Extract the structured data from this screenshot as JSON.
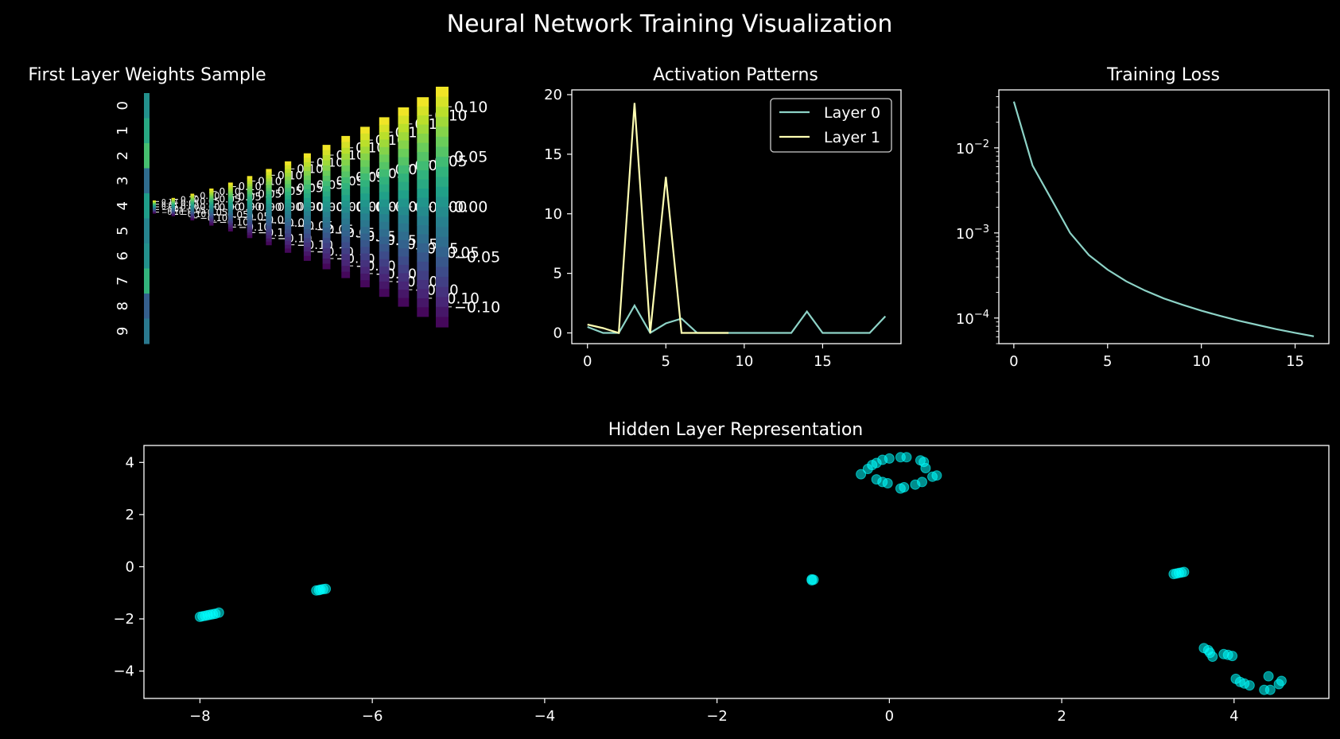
{
  "figure": {
    "title": "Neural Network Training Visualization"
  },
  "chart_data": [
    {
      "type": "heatmap",
      "title": "First Layer Weights Sample",
      "row_tick_labels": [
        "0",
        "1",
        "2",
        "3",
        "4",
        "5",
        "6",
        "7",
        "8",
        "9"
      ],
      "colormap": "viridis",
      "colorbar_count": 16,
      "colorbar_range": [
        -0.12,
        0.12
      ],
      "colorbar_tick_labels": [
        "0.10",
        "0.05",
        "0.00",
        "-0.05",
        "-0.10"
      ]
    },
    {
      "type": "line",
      "title": "Activation Patterns",
      "xlabel": "",
      "ylabel": "",
      "xlim": [
        -1,
        20
      ],
      "ylim": [
        -0.9,
        20.4
      ],
      "xticks": [
        0,
        5,
        10,
        15
      ],
      "yticks": [
        0,
        5,
        10,
        15,
        20
      ],
      "legend_position": "top-right",
      "series": [
        {
          "name": "Layer 0",
          "color": "#8dd3c7",
          "x": [
            0,
            1,
            2,
            3,
            4,
            5,
            6,
            7,
            8,
            9,
            10,
            11,
            12,
            13,
            14,
            15,
            16,
            17,
            18,
            19
          ],
          "values": [
            0.5,
            0,
            0,
            2.3,
            0,
            0.8,
            1.2,
            0,
            0,
            0,
            0,
            0,
            0,
            0,
            1.8,
            0,
            0,
            0,
            0,
            1.4
          ]
        },
        {
          "name": "Layer 1",
          "color": "#ffffb3",
          "x": [
            0,
            1,
            2,
            3,
            4,
            5,
            6,
            7,
            8,
            9
          ],
          "values": [
            0.7,
            0.4,
            0,
            19.3,
            0,
            13.1,
            0,
            0,
            0,
            0
          ]
        }
      ]
    },
    {
      "type": "line",
      "title": "Training Loss",
      "yscale": "log",
      "xlim": [
        -0.8,
        16.8
      ],
      "ylim": [
        5e-05,
        0.048
      ],
      "xticks": [
        0,
        5,
        10,
        15
      ],
      "yticks": [
        0.0001,
        0.001,
        0.01
      ],
      "ytick_labels": [
        {
          "base": "10",
          "exp": "−4"
        },
        {
          "base": "10",
          "exp": "−3"
        },
        {
          "base": "10",
          "exp": "−2"
        }
      ],
      "series": [
        {
          "color": "#8dd3c7",
          "x": [
            0,
            1,
            2,
            3,
            4,
            5,
            6,
            7,
            8,
            9,
            10,
            11,
            12,
            13,
            14,
            15,
            16
          ],
          "values": [
            0.035,
            0.0062,
            0.0025,
            0.001,
            0.00055,
            0.00037,
            0.00027,
            0.00021,
            0.00017,
            0.000143,
            0.000122,
            0.000106,
            9.3e-05,
            8.3e-05,
            7.4e-05,
            6.7e-05,
            6.1e-05
          ]
        }
      ]
    },
    {
      "type": "scatter",
      "title": "Hidden Layer Representation",
      "xlim": [
        -8.65,
        5.1
      ],
      "ylim": [
        -5.05,
        4.65
      ],
      "xticks": [
        -8,
        -6,
        -4,
        -2,
        0,
        2,
        4
      ],
      "yticks": [
        -4,
        -2,
        0,
        2,
        4
      ],
      "color": "#00ffff",
      "points": [
        [
          -8.0,
          -1.92
        ],
        [
          -7.97,
          -1.9
        ],
        [
          -7.94,
          -1.88
        ],
        [
          -7.91,
          -1.86
        ],
        [
          -7.88,
          -1.84
        ],
        [
          -7.85,
          -1.82
        ],
        [
          -7.82,
          -1.8
        ],
        [
          -7.78,
          -1.76
        ],
        [
          -6.65,
          -0.91
        ],
        [
          -6.62,
          -0.9
        ],
        [
          -6.6,
          -0.88
        ],
        [
          -6.57,
          -0.86
        ],
        [
          -6.54,
          -0.85
        ],
        [
          -0.9,
          -0.52
        ],
        [
          -0.88,
          -0.5
        ],
        [
          -0.9,
          -0.48
        ],
        [
          -0.33,
          3.55
        ],
        [
          -0.25,
          3.75
        ],
        [
          -0.2,
          3.9
        ],
        [
          -0.15,
          3.98
        ],
        [
          -0.08,
          4.1
        ],
        [
          0.0,
          4.15
        ],
        [
          0.13,
          4.2
        ],
        [
          0.2,
          4.2
        ],
        [
          0.36,
          4.08
        ],
        [
          0.4,
          4.02
        ],
        [
          0.42,
          3.78
        ],
        [
          0.55,
          3.5
        ],
        [
          0.5,
          3.45
        ],
        [
          0.38,
          3.25
        ],
        [
          0.3,
          3.15
        ],
        [
          0.17,
          3.05
        ],
        [
          0.13,
          3.0
        ],
        [
          -0.02,
          3.2
        ],
        [
          -0.08,
          3.25
        ],
        [
          -0.15,
          3.35
        ],
        [
          3.3,
          -0.28
        ],
        [
          3.33,
          -0.26
        ],
        [
          3.36,
          -0.24
        ],
        [
          3.39,
          -0.22
        ],
        [
          3.42,
          -0.2
        ],
        [
          3.65,
          -3.12
        ],
        [
          3.7,
          -3.2
        ],
        [
          3.72,
          -3.3
        ],
        [
          3.75,
          -3.45
        ],
        [
          3.88,
          -3.35
        ],
        [
          3.93,
          -3.38
        ],
        [
          3.98,
          -3.42
        ],
        [
          4.02,
          -4.3
        ],
        [
          4.07,
          -4.42
        ],
        [
          4.12,
          -4.48
        ],
        [
          4.18,
          -4.55
        ],
        [
          4.35,
          -4.72
        ],
        [
          4.42,
          -4.72
        ],
        [
          4.4,
          -4.2
        ],
        [
          4.52,
          -4.5
        ],
        [
          4.55,
          -4.38
        ]
      ]
    }
  ]
}
